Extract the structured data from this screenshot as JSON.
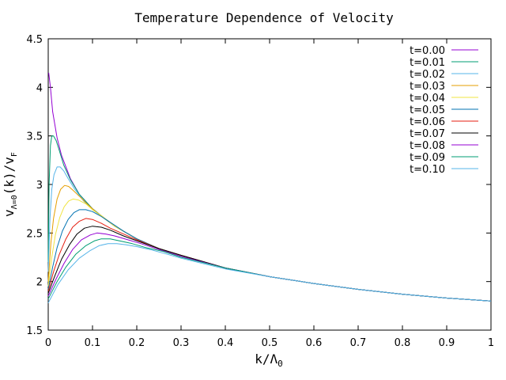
{
  "chart_data": {
    "type": "line",
    "title": "Temperature Dependence of Velocity",
    "xlabel": {
      "base": "k/Λ",
      "sub": "0"
    },
    "ylabel": {
      "base": "v",
      "sub1": "Λ=0",
      "mid": "(k)/v",
      "sub2": "F"
    },
    "xlim": [
      0,
      1
    ],
    "ylim": [
      1.5,
      4.5
    ],
    "xticks": [
      0,
      0.1,
      0.2,
      0.3,
      0.4,
      0.5,
      0.6,
      0.7,
      0.8,
      0.9,
      1
    ],
    "xtick_labels": [
      "0",
      "0.1",
      "0.2",
      "0.3",
      "0.4",
      "0.5",
      "0.6",
      "0.7",
      "0.8",
      "0.9",
      "1"
    ],
    "yticks": [
      1.5,
      2,
      2.5,
      3,
      3.5,
      4,
      4.5
    ],
    "ytick_labels": [
      "1.5",
      "2",
      "2.5",
      "3",
      "3.5",
      "4",
      "4.5"
    ],
    "grid": false,
    "legend_position": "top-right",
    "series": [
      {
        "name": "t=0.00",
        "color": "#9400d3",
        "x": [
          0.001,
          0.005,
          0.01,
          0.02,
          0.03,
          0.05,
          0.07,
          0.1,
          0.15,
          0.2,
          0.25,
          0.3,
          0.4,
          0.5,
          0.6,
          0.7,
          0.8,
          0.9,
          1.0
        ],
        "y": [
          4.15,
          4.0,
          3.75,
          3.48,
          3.3,
          3.06,
          2.9,
          2.75,
          2.57,
          2.44,
          2.34,
          2.27,
          2.14,
          2.05,
          1.98,
          1.92,
          1.87,
          1.83,
          1.8
        ]
      },
      {
        "name": "t=0.01",
        "color": "#009e73",
        "x": [
          0.0,
          0.002,
          0.005,
          0.008,
          0.012,
          0.018,
          0.025,
          0.035,
          0.05,
          0.07,
          0.1,
          0.15,
          0.2,
          0.25,
          0.3,
          0.4,
          0.5,
          0.6,
          0.7,
          0.8,
          0.9,
          1.0
        ],
        "y": [
          2.2,
          3.0,
          3.4,
          3.5,
          3.5,
          3.45,
          3.35,
          3.2,
          3.05,
          2.9,
          2.75,
          2.57,
          2.44,
          2.34,
          2.27,
          2.14,
          2.05,
          1.98,
          1.92,
          1.87,
          1.83,
          1.8
        ]
      },
      {
        "name": "t=0.02",
        "color": "#56b4e9",
        "x": [
          0.0,
          0.004,
          0.008,
          0.013,
          0.02,
          0.027,
          0.035,
          0.045,
          0.06,
          0.08,
          0.1,
          0.15,
          0.2,
          0.25,
          0.3,
          0.4,
          0.5,
          0.6,
          0.7,
          0.8,
          0.9,
          1.0
        ],
        "y": [
          2.1,
          2.65,
          2.95,
          3.1,
          3.18,
          3.18,
          3.14,
          3.06,
          2.95,
          2.83,
          2.74,
          2.57,
          2.44,
          2.34,
          2.27,
          2.14,
          2.05,
          1.98,
          1.92,
          1.87,
          1.83,
          1.8
        ]
      },
      {
        "name": "t=0.03",
        "color": "#e69f00",
        "x": [
          0.0,
          0.006,
          0.012,
          0.02,
          0.028,
          0.037,
          0.046,
          0.056,
          0.07,
          0.09,
          0.11,
          0.15,
          0.2,
          0.25,
          0.3,
          0.4,
          0.5,
          0.6,
          0.7,
          0.8,
          0.9,
          1.0
        ],
        "y": [
          2.0,
          2.4,
          2.65,
          2.85,
          2.95,
          2.99,
          2.98,
          2.94,
          2.88,
          2.79,
          2.71,
          2.57,
          2.44,
          2.34,
          2.27,
          2.14,
          2.05,
          1.98,
          1.92,
          1.87,
          1.83,
          1.8
        ]
      },
      {
        "name": "t=0.04",
        "color": "#f0e442",
        "x": [
          0.0,
          0.008,
          0.016,
          0.026,
          0.036,
          0.046,
          0.056,
          0.068,
          0.085,
          0.1,
          0.12,
          0.15,
          0.2,
          0.25,
          0.3,
          0.4,
          0.5,
          0.6,
          0.7,
          0.8,
          0.9,
          1.0
        ],
        "y": [
          1.95,
          2.25,
          2.48,
          2.66,
          2.77,
          2.83,
          2.85,
          2.84,
          2.8,
          2.74,
          2.68,
          2.57,
          2.44,
          2.34,
          2.27,
          2.14,
          2.05,
          1.98,
          1.92,
          1.87,
          1.83,
          1.8
        ]
      },
      {
        "name": "t=0.05",
        "color": "#0072b2",
        "x": [
          0.0,
          0.01,
          0.02,
          0.032,
          0.045,
          0.058,
          0.07,
          0.085,
          0.1,
          0.12,
          0.14,
          0.17,
          0.2,
          0.25,
          0.3,
          0.4,
          0.5,
          0.6,
          0.7,
          0.8,
          0.9,
          1.0
        ],
        "y": [
          1.92,
          2.15,
          2.35,
          2.52,
          2.64,
          2.71,
          2.74,
          2.74,
          2.72,
          2.67,
          2.61,
          2.52,
          2.44,
          2.34,
          2.27,
          2.14,
          2.05,
          1.98,
          1.92,
          1.87,
          1.83,
          1.8
        ]
      },
      {
        "name": "t=0.06",
        "color": "#e51e10",
        "x": [
          0.0,
          0.012,
          0.025,
          0.04,
          0.055,
          0.07,
          0.085,
          0.1,
          0.12,
          0.14,
          0.17,
          0.2,
          0.25,
          0.3,
          0.4,
          0.5,
          0.6,
          0.7,
          0.8,
          0.9,
          1.0
        ],
        "y": [
          1.9,
          2.1,
          2.28,
          2.44,
          2.56,
          2.62,
          2.65,
          2.64,
          2.6,
          2.55,
          2.49,
          2.43,
          2.34,
          2.27,
          2.14,
          2.05,
          1.98,
          1.92,
          1.87,
          1.83,
          1.8
        ]
      },
      {
        "name": "t=0.07",
        "color": "#000000",
        "x": [
          0.0,
          0.015,
          0.03,
          0.048,
          0.065,
          0.082,
          0.1,
          0.12,
          0.14,
          0.17,
          0.2,
          0.25,
          0.3,
          0.4,
          0.5,
          0.6,
          0.7,
          0.8,
          0.9,
          1.0
        ],
        "y": [
          1.88,
          2.06,
          2.23,
          2.38,
          2.49,
          2.55,
          2.57,
          2.56,
          2.53,
          2.47,
          2.42,
          2.34,
          2.27,
          2.14,
          2.05,
          1.98,
          1.92,
          1.87,
          1.83,
          1.8
        ]
      },
      {
        "name": "t=0.08",
        "color": "#9400d3",
        "x": [
          0.0,
          0.018,
          0.036,
          0.055,
          0.075,
          0.095,
          0.11,
          0.13,
          0.15,
          0.18,
          0.21,
          0.25,
          0.3,
          0.4,
          0.5,
          0.6,
          0.7,
          0.8,
          0.9,
          1.0
        ],
        "y": [
          1.85,
          2.03,
          2.19,
          2.33,
          2.43,
          2.48,
          2.5,
          2.49,
          2.47,
          2.43,
          2.39,
          2.33,
          2.26,
          2.14,
          2.05,
          1.98,
          1.92,
          1.87,
          1.83,
          1.8
        ]
      },
      {
        "name": "t=0.09",
        "color": "#009e73",
        "x": [
          0.0,
          0.02,
          0.04,
          0.062,
          0.085,
          0.105,
          0.12,
          0.14,
          0.16,
          0.19,
          0.22,
          0.26,
          0.3,
          0.4,
          0.5,
          0.6,
          0.7,
          0.8,
          0.9,
          1.0
        ],
        "y": [
          1.82,
          2.0,
          2.15,
          2.28,
          2.37,
          2.42,
          2.44,
          2.44,
          2.42,
          2.39,
          2.35,
          2.31,
          2.25,
          2.14,
          2.05,
          1.98,
          1.92,
          1.87,
          1.83,
          1.8
        ]
      },
      {
        "name": "t=0.10",
        "color": "#56b4e9",
        "x": [
          0.0,
          0.022,
          0.045,
          0.07,
          0.095,
          0.115,
          0.135,
          0.155,
          0.175,
          0.2,
          0.23,
          0.27,
          0.3,
          0.4,
          0.5,
          0.6,
          0.7,
          0.8,
          0.9,
          1.0
        ],
        "y": [
          1.78,
          1.97,
          2.12,
          2.24,
          2.32,
          2.37,
          2.39,
          2.39,
          2.38,
          2.36,
          2.33,
          2.28,
          2.24,
          2.13,
          2.05,
          1.98,
          1.92,
          1.87,
          1.83,
          1.8
        ]
      }
    ]
  }
}
